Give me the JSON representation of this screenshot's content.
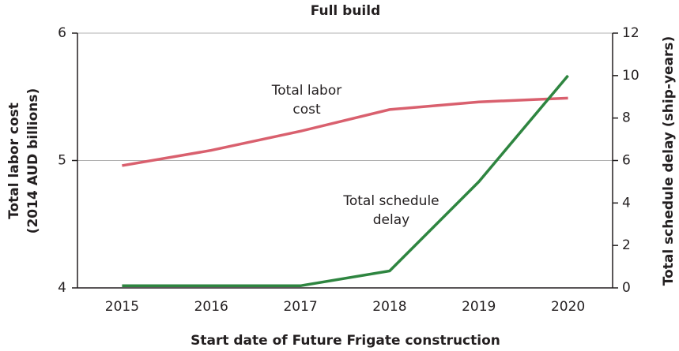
{
  "chart_data": {
    "type": "line",
    "title": "Full build",
    "xlabel": "Start date of Future Frigate construction",
    "ylabel": [
      "Total labor cost",
      "(2014 AUD billions)"
    ],
    "y2label": "Total schedule delay (ship-years)",
    "categories": [
      "2015",
      "2016",
      "2017",
      "2018",
      "2019",
      "2020"
    ],
    "series": [
      {
        "name": "Total labor cost",
        "color": "#d9606e",
        "values": [
          4.96,
          5.08,
          5.23,
          5.4,
          5.46,
          5.49
        ]
      },
      {
        "name": "Total schedule delay",
        "color": "#2e8540",
        "axis": "y2",
        "values": [
          0.1,
          0.1,
          0.1,
          0.8,
          5.0,
          10.0
        ]
      }
    ],
    "annotations": [
      [
        "Total labor",
        "cost"
      ],
      [
        "Total schedule",
        "delay"
      ]
    ],
    "ylim": [
      4,
      6
    ],
    "yticks": [
      4,
      5,
      6
    ],
    "y2lim": [
      0,
      12
    ],
    "y2ticks": [
      0,
      2,
      4,
      6,
      8,
      10,
      12
    ],
    "grid": true
  }
}
